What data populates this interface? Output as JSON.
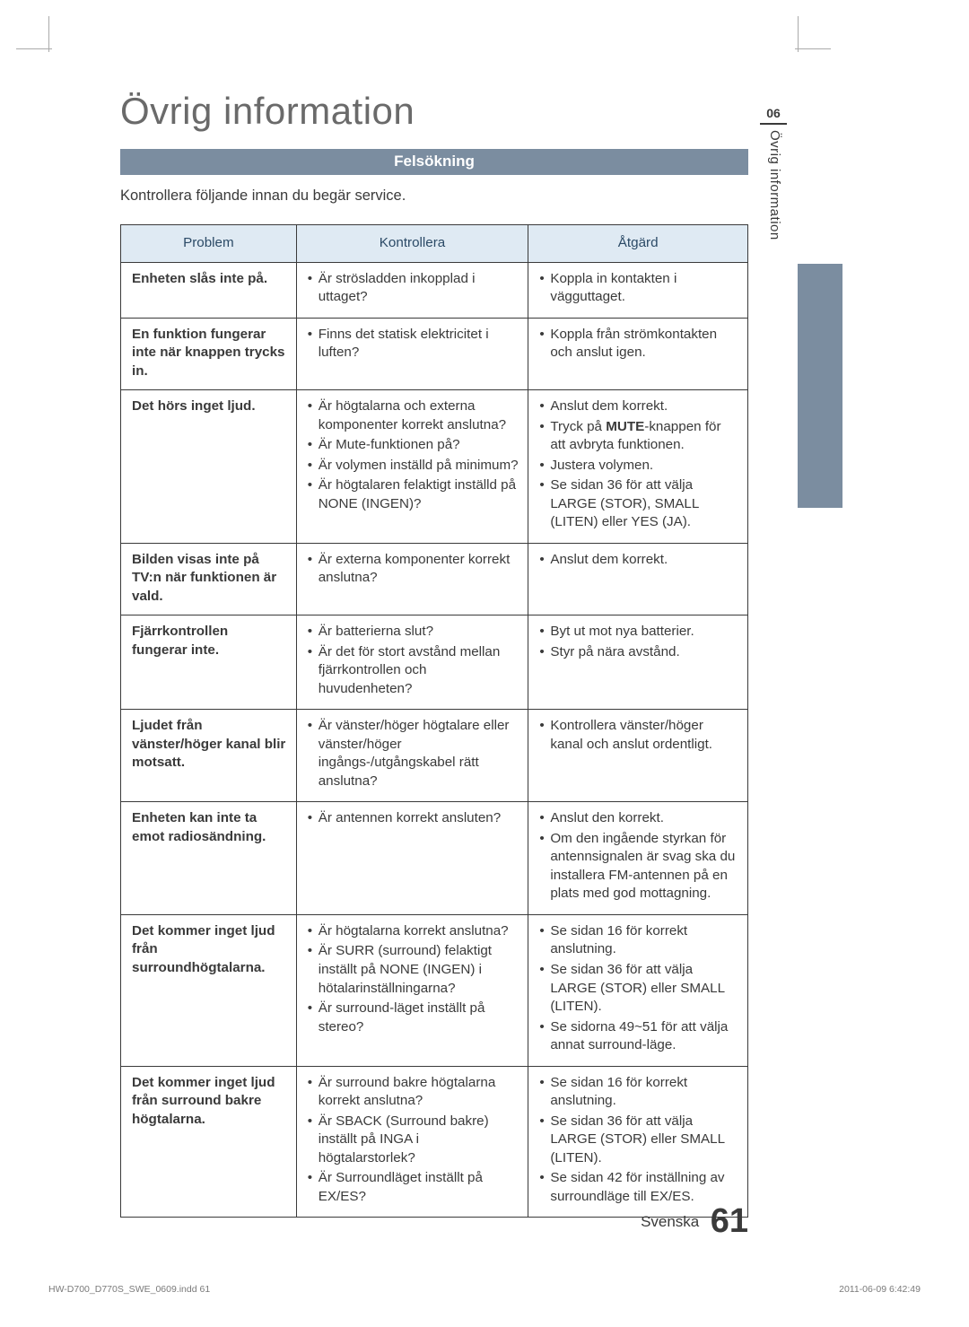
{
  "title": "Övrig information",
  "subhead": "Felsökning",
  "intro": "Kontrollera följande innan du begär service.",
  "side": {
    "chapter": "06",
    "label": "Övrig information"
  },
  "table": {
    "headers": [
      "Problem",
      "Kontrollera",
      "Åtgärd"
    ],
    "rows": [
      {
        "problem": "Enheten slås inte på.",
        "check": [
          "Är strösladden inkopplad i uttaget?"
        ],
        "action": [
          "Koppla in kontakten i vägguttaget."
        ]
      },
      {
        "problem": "En funktion fungerar inte när knappen trycks in.",
        "check": [
          "Finns det statisk elektricitet i luften?"
        ],
        "action": [
          "Koppla från strömkontakten och anslut igen."
        ]
      },
      {
        "problem": "Det hörs inget ljud.",
        "check": [
          "Är högtalarna och externa komponenter korrekt anslutna?",
          "Är Mute-funktionen på?",
          "Är volymen inställd på minimum?",
          "Är högtalaren felaktigt inställd på NONE (INGEN)?"
        ],
        "action_html": "<li>Anslut dem korrekt.</li><li>Tryck på <b>MUTE</b>-knappen för att avbryta funktionen.</li><li>Justera volymen.</li><li>Se sidan 36 för att välja LARGE (STOR), SMALL (LITEN) eller YES (JA).</li>"
      },
      {
        "problem": "Bilden visas inte på TV:n när funktionen är vald.",
        "check": [
          "Är externa komponenter korrekt anslutna?"
        ],
        "action": [
          "Anslut dem korrekt."
        ]
      },
      {
        "problem": "Fjärrkontrollen fungerar inte.",
        "check": [
          "Är batterierna slut?",
          "Är det för stort avstånd mellan fjärrkontrollen och huvudenheten?"
        ],
        "action": [
          "Byt ut mot nya batterier.",
          "Styr på nära avstånd."
        ]
      },
      {
        "problem": "Ljudet från vänster/höger kanal blir motsatt.",
        "check": [
          "Är vänster/höger högtalare eller vänster/höger ingångs-/utgångskabel rätt anslutna?"
        ],
        "action": [
          "Kontrollera vänster/höger kanal och anslut ordentligt."
        ]
      },
      {
        "problem": "Enheten kan inte ta emot radiosändning.",
        "check": [
          "Är antennen korrekt ansluten?"
        ],
        "action": [
          "Anslut den korrekt.",
          "Om den ingående styrkan för antennsignalen är svag ska du installera FM-antennen på en plats med god mottagning."
        ]
      },
      {
        "problem": "Det kommer inget ljud från surroundhögtalarna.",
        "check": [
          "Är högtalarna korrekt anslutna?",
          "Är SURR (surround) felaktigt inställt på NONE (INGEN) i hötalarinställningarna?",
          "Är surround-läget inställt på stereo?"
        ],
        "action": [
          "Se sidan 16 för korrekt anslutning.",
          "Se sidan 36 för att välja LARGE (STOR) eller SMALL (LITEN).",
          "Se sidorna 49~51 för att välja annat surround-läge."
        ]
      },
      {
        "problem": "Det kommer inget ljud från surround bakre högtalarna.",
        "check": [
          "Är surround bakre högtalarna korrekt anslutna?",
          "Är SBACK (Surround bakre) inställt på INGA i högtalarstorlek?",
          "Är Surroundläget inställt på EX/ES?"
        ],
        "action": [
          "Se sidan 16 för korrekt anslutning.",
          "Se sidan 36 för att välja LARGE (STOR) eller SMALL (LITEN).",
          "Se sidan 42 för inställning av surroundläge till EX/ES."
        ]
      }
    ]
  },
  "footer": {
    "lang": "Svenska",
    "page": "61"
  },
  "print": {
    "file": "HW-D700_D770S_SWE_0609.indd   61",
    "stamp": "2011-06-09    6:42:49"
  }
}
